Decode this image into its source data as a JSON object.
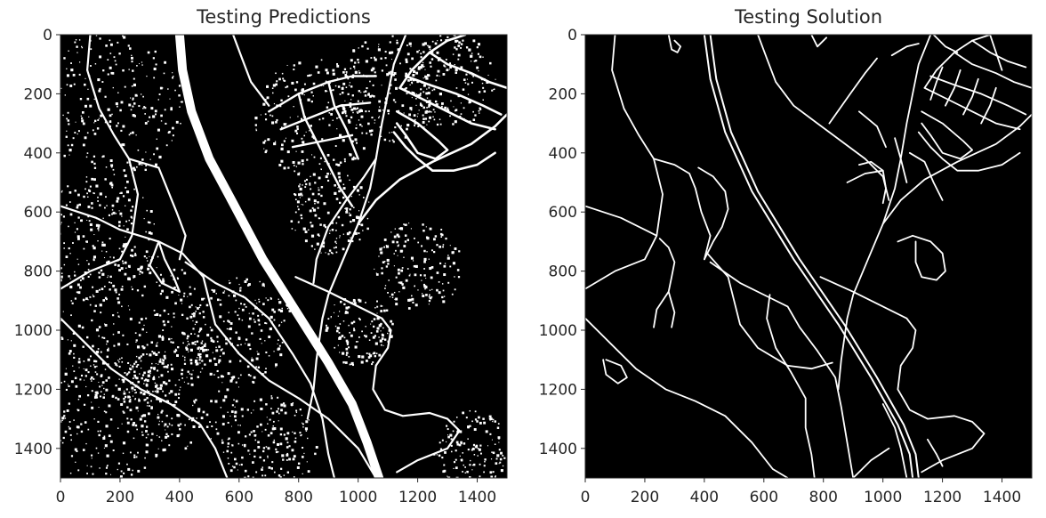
{
  "chart_data": [
    {
      "type": "heatmap",
      "title": "Testing Predictions",
      "xlabel": "",
      "ylabel": "",
      "xlim": [
        0,
        1500
      ],
      "ylim": [
        1500,
        0
      ],
      "x_ticks": [
        0,
        200,
        400,
        600,
        800,
        1000,
        1200,
        1400
      ],
      "y_ticks": [
        0,
        200,
        400,
        600,
        800,
        1000,
        1200,
        1400
      ],
      "colormap": "binary (black background, white predicted road pixels)",
      "grid": false
    },
    {
      "type": "heatmap",
      "title": "Testing Solution",
      "xlabel": "",
      "ylabel": "",
      "xlim": [
        0,
        1500
      ],
      "ylim": [
        1500,
        0
      ],
      "x_ticks": [
        0,
        200,
        400,
        600,
        800,
        1000,
        1200,
        1400
      ],
      "y_ticks": [
        0,
        200,
        400,
        600,
        800,
        1000,
        1200,
        1400
      ],
      "colormap": "binary (black background, white road centerlines)",
      "grid": false
    }
  ],
  "colors": {
    "background": "#000000",
    "roads": "#ffffff",
    "text": "#262626"
  }
}
